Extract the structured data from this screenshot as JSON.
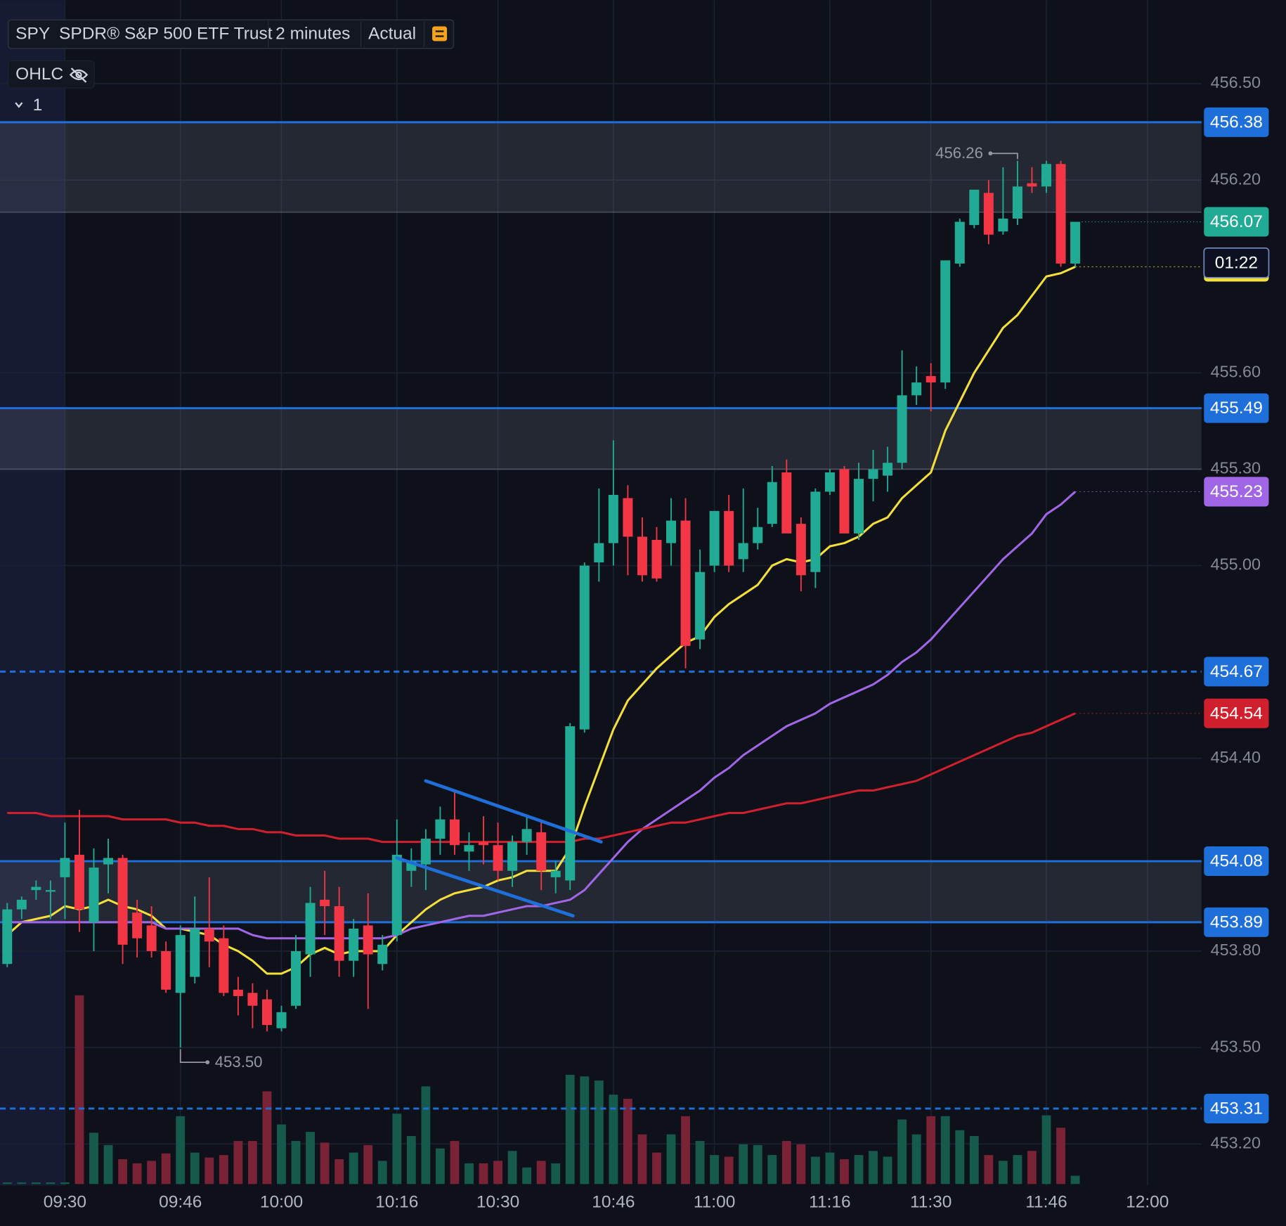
{
  "chart_data": {
    "type": "candlestick",
    "symbol": "SPY",
    "title": "SPDR® S&P 500 ETF Trust",
    "interval": "2 minutes",
    "price_type": "Actual",
    "legend_label": "OHLC",
    "indicator_count": 1,
    "countdown": "01:22",
    "grid": true,
    "extended_hours_shading": true,
    "up_color": "#22ab94",
    "down_color": "#f23645",
    "volume_up_color": "#165a4c",
    "volume_down_color": "#7a2236",
    "xlim": [
      561,
      727.5
    ],
    "xticks": [
      {
        "value": 570,
        "label": "09:30"
      },
      {
        "value": 586,
        "label": "09:46"
      },
      {
        "value": 600,
        "label": "10:00"
      },
      {
        "value": 616,
        "label": "10:16"
      },
      {
        "value": 630,
        "label": "10:30"
      },
      {
        "value": 646,
        "label": "10:46"
      },
      {
        "value": 660,
        "label": "11:00"
      },
      {
        "value": 676,
        "label": "11:16"
      },
      {
        "value": 690,
        "label": "11:30"
      },
      {
        "value": 706,
        "label": "11:46"
      },
      {
        "value": 720,
        "label": "12:00"
      }
    ],
    "ylim": [
      453.07,
      456.76
    ],
    "yticks": [
      {
        "value": 456.5,
        "label": "456.50"
      },
      {
        "value": 456.2,
        "label": "456.20"
      },
      {
        "value": 455.6,
        "label": "455.60"
      },
      {
        "value": 455.3,
        "label": "455.30"
      },
      {
        "value": 455,
        "label": "455.00"
      },
      {
        "value": 454.4,
        "label": "454.40"
      },
      {
        "value": 453.8,
        "label": "453.80"
      },
      {
        "value": 453.5,
        "label": "453.50"
      },
      {
        "value": 453.2,
        "label": "453.20"
      }
    ],
    "x": [
      562,
      564,
      566,
      568,
      570,
      572,
      574,
      576,
      578,
      580,
      582,
      584,
      586,
      588,
      590,
      592,
      594,
      596,
      598,
      600,
      602,
      604,
      606,
      608,
      610,
      612,
      614,
      616,
      618,
      620,
      622,
      624,
      626,
      628,
      630,
      632,
      634,
      636,
      638,
      640,
      642,
      644,
      646,
      648,
      650,
      652,
      654,
      656,
      658,
      660,
      662,
      664,
      666,
      668,
      670,
      672,
      674,
      676,
      678,
      680,
      682,
      684,
      686,
      688,
      690,
      692,
      694,
      696,
      698,
      700,
      702,
      704,
      706,
      708,
      710
    ],
    "open": [
      453.76,
      453.93,
      453.99,
      453.99,
      454.03,
      454.1,
      453.89,
      454.07,
      454.09,
      453.92,
      453.88,
      453.8,
      453.67,
      453.72,
      453.87,
      453.84,
      453.68,
      453.67,
      453.65,
      453.56,
      453.63,
      453.79,
      453.96,
      453.94,
      453.77,
      453.88,
      453.76,
      453.85,
      454.05,
      454.07,
      454.15,
      454.21,
      454.11,
      454.14,
      454.13,
      454.05,
      454.14,
      454.17,
      454.03,
      454.02,
      454.49,
      455.01,
      455.07,
      455.21,
      455.09,
      455.08,
      455.07,
      455.14,
      454.77,
      455.0,
      455.17,
      455.02,
      455.07,
      455.13,
      455.29,
      455.13,
      454.98,
      455.23,
      455.3,
      455.1,
      455.27,
      455.28,
      455.32,
      455.53,
      455.59,
      455.57,
      455.94,
      456.06,
      456.16,
      456.04,
      456.08,
      456.19,
      456.18,
      456.25,
      455.94
    ],
    "high": [
      453.95,
      453.97,
      454.02,
      454.02,
      454.2,
      454.24,
      454.12,
      454.15,
      454.1,
      453.96,
      453.94,
      453.83,
      453.88,
      453.97,
      454.03,
      453.88,
      453.72,
      453.7,
      453.68,
      453.63,
      453.85,
      454.0,
      454.05,
      454.0,
      453.9,
      453.98,
      453.85,
      454.21,
      454.12,
      454.18,
      454.25,
      454.3,
      454.17,
      454.22,
      454.2,
      454.16,
      454.22,
      454.2,
      454.08,
      454.51,
      455.01,
      455.24,
      455.39,
      455.25,
      455.15,
      455.12,
      455.21,
      455.21,
      455.05,
      455.17,
      455.22,
      455.24,
      455.18,
      455.31,
      455.33,
      455.15,
      455.24,
      455.3,
      455.31,
      455.32,
      455.36,
      455.37,
      455.67,
      455.62,
      455.63,
      455.95,
      456.08,
      456.17,
      456.2,
      456.24,
      456.26,
      456.24,
      456.26,
      456.26,
      456.07
    ],
    "low": [
      453.75,
      453.9,
      453.96,
      453.9,
      453.9,
      453.86,
      453.8,
      453.98,
      453.76,
      453.78,
      453.78,
      453.67,
      453.5,
      453.7,
      453.75,
      453.66,
      453.6,
      453.56,
      453.55,
      453.55,
      453.62,
      453.72,
      453.85,
      453.72,
      453.72,
      453.62,
      453.74,
      453.83,
      454.0,
      453.99,
      454.1,
      454.1,
      454.05,
      454.07,
      454.02,
      454.0,
      454.1,
      453.99,
      453.98,
      453.99,
      454.48,
      454.95,
      455.0,
      454.97,
      454.95,
      454.95,
      455.0,
      454.68,
      454.74,
      454.98,
      454.98,
      454.98,
      455.05,
      455.12,
      455.13,
      454.92,
      454.93,
      455.22,
      455.1,
      455.08,
      455.2,
      455.23,
      455.3,
      455.5,
      455.48,
      455.55,
      455.93,
      456.05,
      456.0,
      456.03,
      456.06,
      456.16,
      456.16,
      455.93,
      455.93
    ],
    "close": [
      453.93,
      453.96,
      454.0,
      453.99,
      454.09,
      453.93,
      454.06,
      454.09,
      453.82,
      453.84,
      453.8,
      453.68,
      453.85,
      453.87,
      453.83,
      453.67,
      453.66,
      453.63,
      453.57,
      453.61,
      453.8,
      453.95,
      453.94,
      453.77,
      453.87,
      453.79,
      453.82,
      454.1,
      454.08,
      454.15,
      454.21,
      454.13,
      454.13,
      454.13,
      454.05,
      454.14,
      454.18,
      454.05,
      454.05,
      454.5,
      455.0,
      455.07,
      455.22,
      455.09,
      454.97,
      454.96,
      455.14,
      454.75,
      454.98,
      455.17,
      455.0,
      455.07,
      455.12,
      455.26,
      455.1,
      454.97,
      455.23,
      455.29,
      455.1,
      455.27,
      455.3,
      455.32,
      455.53,
      455.57,
      455.57,
      455.95,
      456.07,
      456.17,
      456.03,
      456.08,
      456.18,
      456.18,
      456.25,
      455.94,
      456.07
    ],
    "volume": [
      2,
      2,
      2,
      2,
      2,
      228,
      62,
      47,
      30,
      25,
      28,
      37,
      82,
      38,
      32,
      35,
      52,
      52,
      112,
      72,
      52,
      63,
      50,
      30,
      38,
      47,
      28,
      85,
      58,
      118,
      43,
      52,
      25,
      25,
      28,
      40,
      20,
      28,
      25,
      132,
      130,
      125,
      108,
      103,
      60,
      38,
      60,
      82,
      52,
      35,
      33,
      48,
      47,
      35,
      52,
      48,
      33,
      38,
      30,
      35,
      40,
      33,
      78,
      60,
      82,
      82,
      65,
      58,
      35,
      28,
      35,
      40,
      83,
      68,
      10
    ],
    "moving_averages": [
      {
        "color": "#f5e03b",
        "values": [
          453.85,
          453.89,
          453.9,
          453.91,
          453.94,
          453.93,
          453.94,
          453.96,
          453.94,
          453.93,
          453.91,
          453.87,
          453.87,
          453.86,
          453.85,
          453.82,
          453.8,
          453.77,
          453.73,
          453.73,
          453.75,
          453.79,
          453.81,
          453.79,
          453.8,
          453.8,
          453.8,
          453.85,
          453.89,
          453.93,
          453.96,
          453.98,
          453.99,
          454.0,
          454.02,
          454.03,
          454.05,
          454.05,
          454.05,
          454.12,
          454.25,
          454.37,
          454.49,
          454.58,
          454.63,
          454.68,
          454.72,
          454.76,
          454.78,
          454.84,
          454.88,
          454.91,
          454.94,
          455.0,
          455.02,
          455.01,
          455.02,
          455.06,
          455.07,
          455.09,
          455.13,
          455.15,
          455.21,
          455.25,
          455.29,
          455.42,
          455.51,
          455.6,
          455.67,
          455.74,
          455.78,
          455.84,
          455.9,
          455.91,
          455.93
        ]
      },
      {
        "color": "#a066e6",
        "values": [
          453.89,
          453.89,
          453.89,
          453.89,
          453.89,
          453.89,
          453.89,
          453.89,
          453.89,
          453.89,
          453.89,
          453.87,
          453.87,
          453.87,
          453.87,
          453.87,
          453.87,
          453.85,
          453.84,
          453.84,
          453.84,
          453.84,
          453.84,
          453.84,
          453.84,
          453.84,
          453.84,
          453.85,
          453.87,
          453.88,
          453.89,
          453.9,
          453.91,
          453.91,
          453.92,
          453.93,
          453.94,
          453.94,
          453.95,
          453.96,
          453.99,
          454.04,
          454.09,
          454.14,
          454.18,
          454.21,
          454.24,
          454.27,
          454.3,
          454.34,
          454.37,
          454.41,
          454.44,
          454.47,
          454.5,
          454.52,
          454.54,
          454.57,
          454.59,
          454.61,
          454.63,
          454.66,
          454.7,
          454.73,
          454.77,
          454.82,
          454.87,
          454.92,
          454.97,
          455.02,
          455.06,
          455.1,
          455.16,
          455.19,
          455.23
        ]
      },
      {
        "color": "#d0202e",
        "values": [
          454.23,
          454.23,
          454.23,
          454.22,
          454.22,
          454.22,
          454.22,
          454.22,
          454.21,
          454.21,
          454.21,
          454.21,
          454.2,
          454.2,
          454.19,
          454.19,
          454.18,
          454.18,
          454.17,
          454.17,
          454.16,
          454.16,
          454.16,
          454.15,
          454.15,
          454.15,
          454.14,
          454.14,
          454.14,
          454.14,
          454.14,
          454.14,
          454.14,
          454.14,
          454.14,
          454.14,
          454.14,
          454.14,
          454.14,
          454.14,
          454.15,
          454.15,
          454.16,
          454.17,
          454.18,
          454.19,
          454.2,
          454.2,
          454.21,
          454.22,
          454.23,
          454.23,
          454.24,
          454.25,
          454.26,
          454.26,
          454.27,
          454.28,
          454.29,
          454.3,
          454.3,
          454.31,
          454.32,
          454.33,
          454.35,
          454.37,
          454.39,
          454.41,
          454.43,
          454.45,
          454.47,
          454.48,
          454.5,
          454.52,
          454.54
        ]
      }
    ],
    "level_color": "#1e6fd9",
    "levels": [
      {
        "value": 456.38,
        "style": "solid"
      },
      {
        "value": 455.49,
        "style": "solid"
      },
      {
        "value": 454.67,
        "style": "dashed"
      },
      {
        "value": 454.08,
        "style": "solid"
      },
      {
        "value": 453.89,
        "style": "solid"
      },
      {
        "value": 453.31,
        "style": "dashed"
      }
    ],
    "zones": [
      [
        456.38,
        456.1
      ],
      [
        455.49,
        455.3
      ],
      [
        454.08,
        453.89
      ]
    ],
    "trend_lines": [
      {
        "x": [
          620,
          644.3
        ],
        "y": [
          454.33,
          454.14
        ]
      },
      {
        "x": [
          616,
          640.4
        ],
        "y": [
          454.09,
          453.91
        ]
      }
    ],
    "annotations": [
      {
        "x": 702,
        "value": 456.26,
        "label": "456.26",
        "side": "high"
      },
      {
        "x": 586,
        "value": 453.5,
        "label": "453.50",
        "side": "low"
      }
    ]
  }
}
